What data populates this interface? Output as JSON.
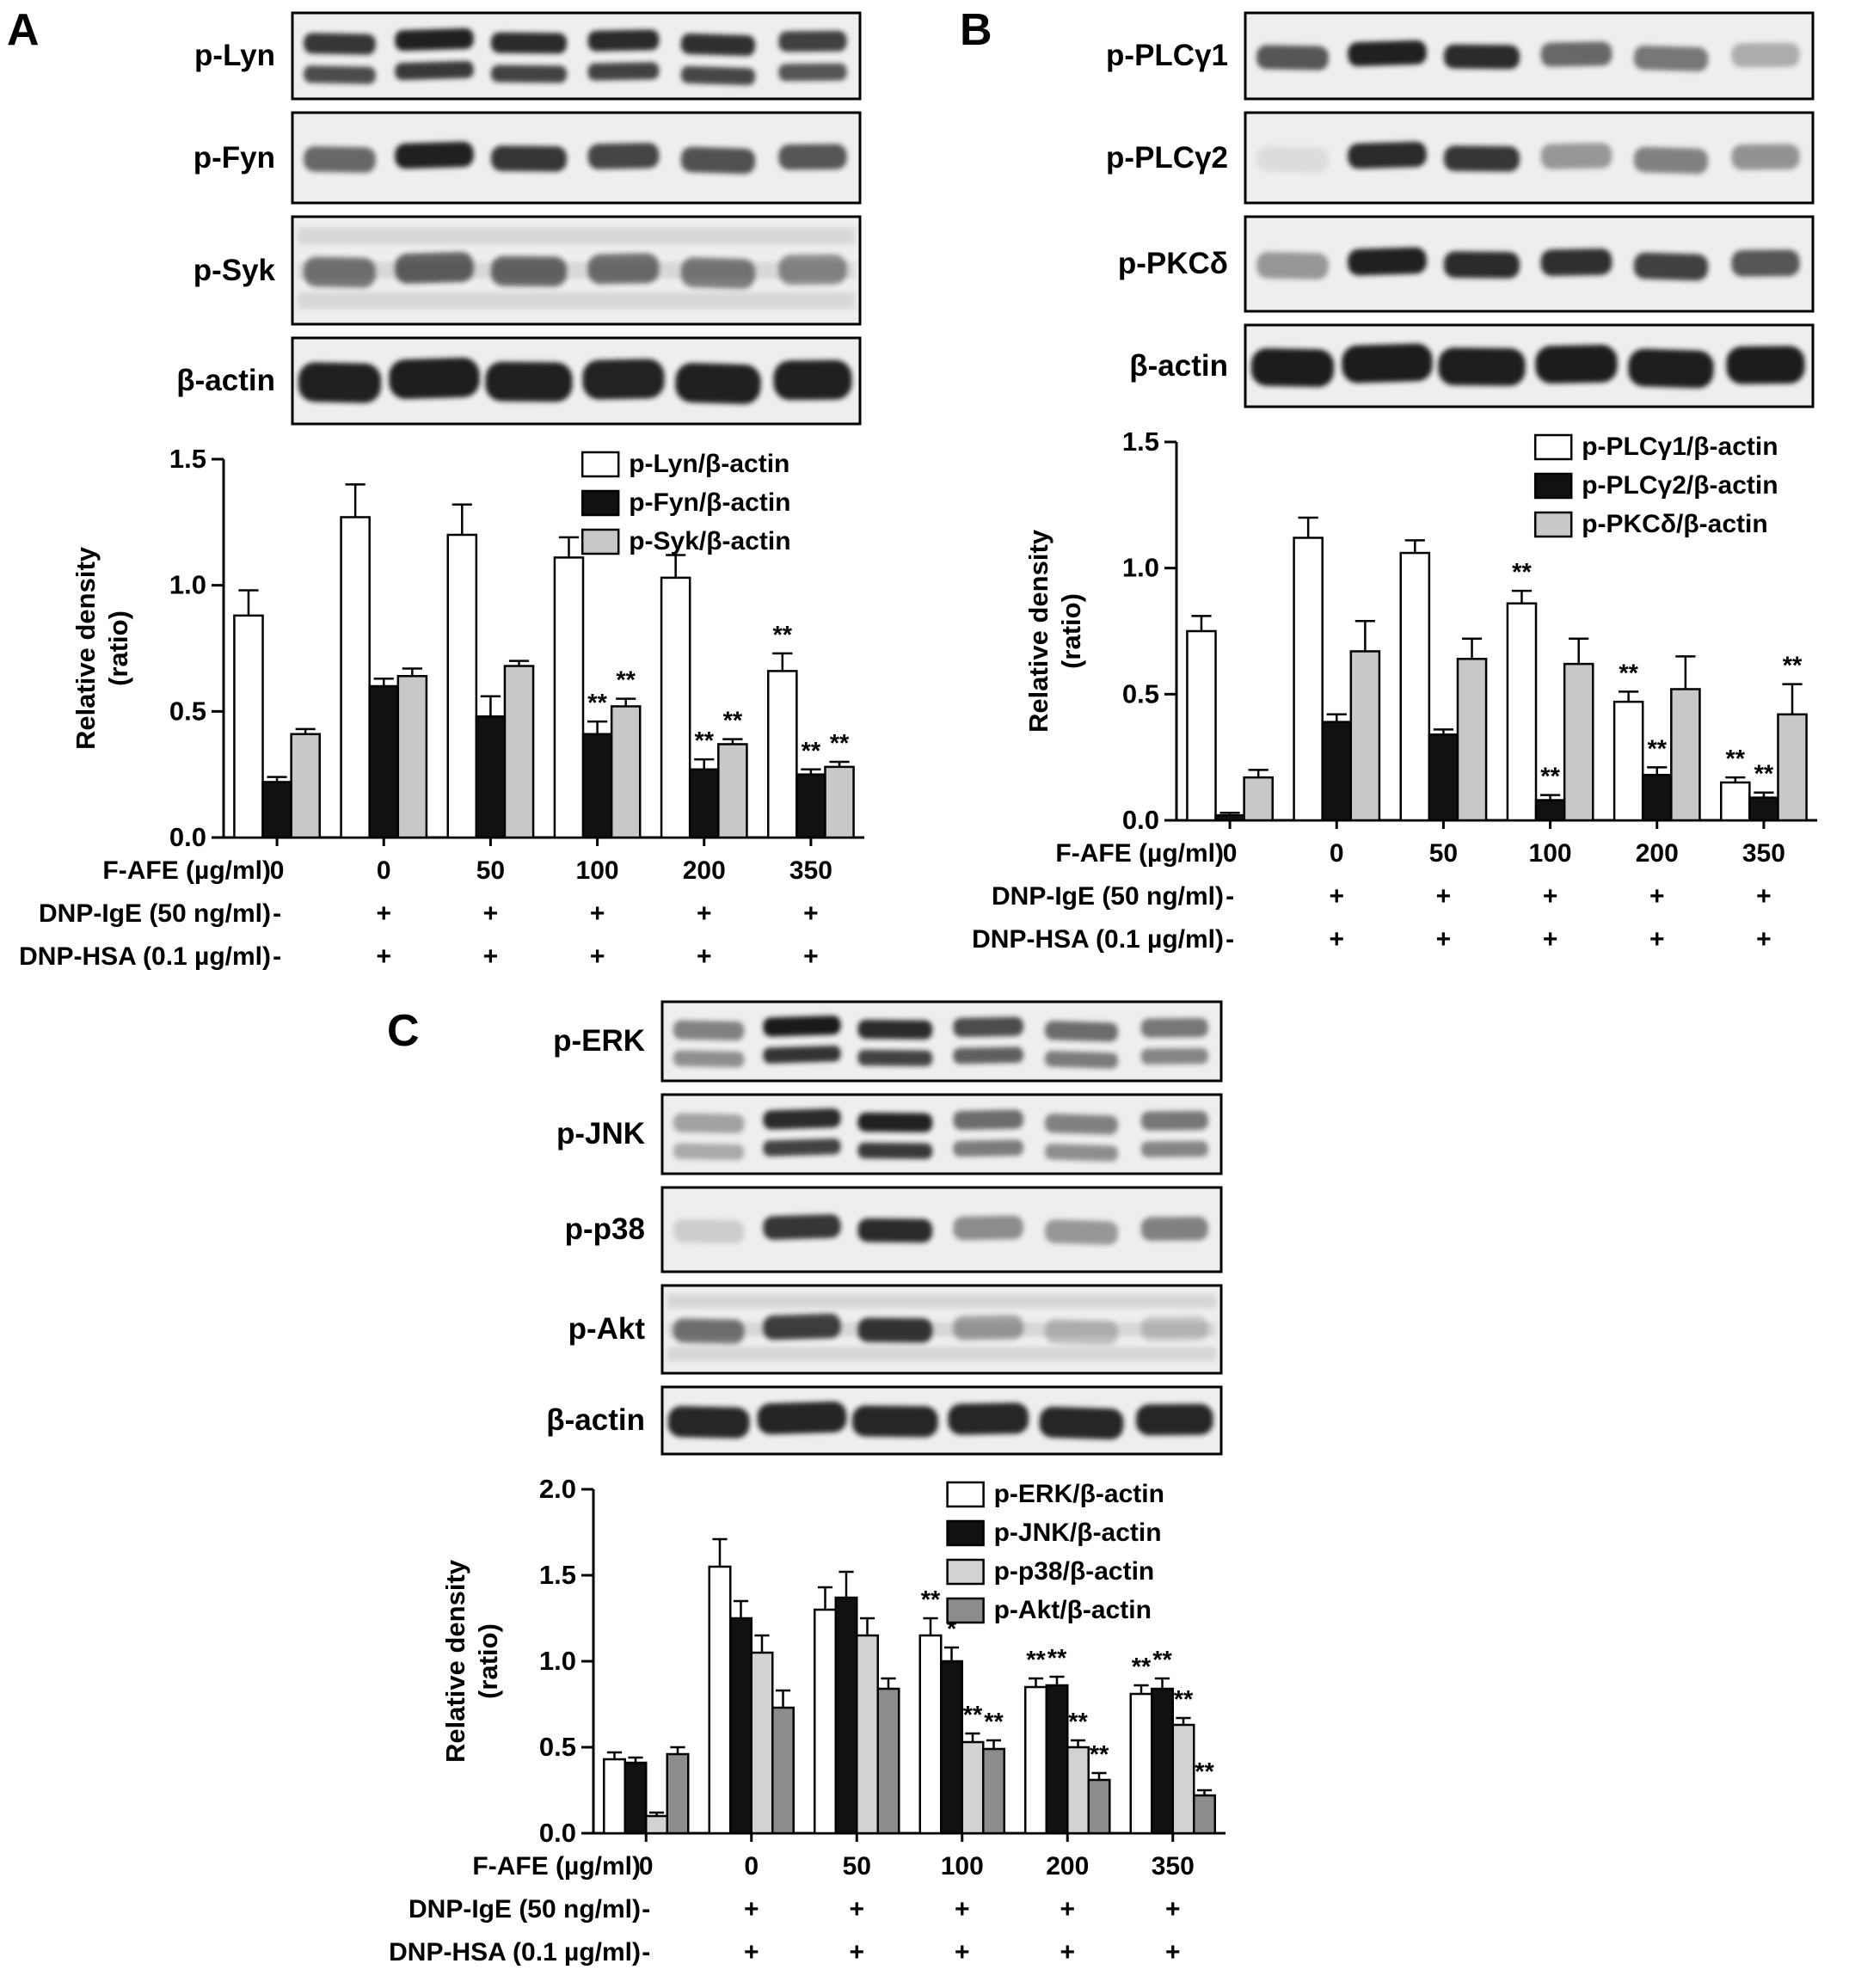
{
  "figure": {
    "panels": [
      {
        "label": "A",
        "blots": [
          {
            "name": "p-Lyn",
            "type": "double",
            "height": 100,
            "intensities": [
              0.85,
              0.95,
              0.9,
              0.9,
              0.88,
              0.8
            ]
          },
          {
            "name": "p-Fyn",
            "type": "single",
            "height": 105,
            "intensities": [
              0.62,
              0.95,
              0.85,
              0.78,
              0.72,
              0.7
            ]
          },
          {
            "name": "p-Syk",
            "type": "smeary",
            "height": 125,
            "smear": 0.8,
            "intensities": [
              0.55,
              0.65,
              0.62,
              0.58,
              0.52,
              0.45
            ]
          },
          {
            "name": "β-actin",
            "type": "thick",
            "height": 100,
            "intensities": [
              0.95,
              0.96,
              0.95,
              0.94,
              0.95,
              0.95
            ]
          }
        ]
      },
      {
        "label": "B",
        "blots": [
          {
            "name": "p-PLCγ1",
            "type": "single",
            "height": 100,
            "intensities": [
              0.7,
              0.95,
              0.9,
              0.62,
              0.55,
              0.3
            ]
          },
          {
            "name": "p-PLCγ2",
            "type": "single",
            "height": 105,
            "intensities": [
              0.08,
              0.9,
              0.85,
              0.4,
              0.5,
              0.42
            ]
          },
          {
            "name": "p-PKCδ",
            "type": "single",
            "height": 110,
            "intensities": [
              0.4,
              0.95,
              0.9,
              0.88,
              0.8,
              0.7
            ]
          },
          {
            "name": "β-actin",
            "type": "thick",
            "height": 95,
            "intensities": [
              0.97,
              0.97,
              0.96,
              0.97,
              0.96,
              0.97
            ]
          }
        ]
      },
      {
        "label": "C",
        "blots": [
          {
            "name": "p-ERK",
            "type": "double",
            "height": 92,
            "intensities": [
              0.5,
              0.98,
              0.9,
              0.75,
              0.6,
              0.55
            ]
          },
          {
            "name": "p-JNK",
            "type": "double",
            "height": 92,
            "intensities": [
              0.35,
              0.9,
              0.95,
              0.6,
              0.5,
              0.55
            ]
          },
          {
            "name": "p-p38",
            "type": "single",
            "height": 98,
            "intensities": [
              0.15,
              0.85,
              0.9,
              0.45,
              0.4,
              0.5
            ]
          },
          {
            "name": "p-Akt",
            "type": "smeary",
            "height": 102,
            "smear": 0.9,
            "intensities": [
              0.55,
              0.8,
              0.85,
              0.35,
              0.22,
              0.18
            ]
          },
          {
            "name": "β-actin",
            "type": "thick",
            "height": 78,
            "intensities": [
              0.92,
              0.93,
              0.92,
              0.92,
              0.92,
              0.92
            ]
          }
        ]
      }
    ]
  },
  "chart_data": [
    {
      "panel": "A",
      "type": "bar",
      "title": "",
      "ylabel": "Relative density (ratio)",
      "ylabel_lines": [
        "Relative density",
        "(ratio)"
      ],
      "ylim": [
        0,
        1.5
      ],
      "yticks": [
        0,
        0.5,
        1.0,
        1.5
      ],
      "grid": false,
      "legend_position": "top-right",
      "categories": [
        "0",
        "0",
        "50",
        "100",
        "200",
        "350"
      ],
      "series": [
        {
          "name": "p-Lyn/β-actin",
          "color": "#ffffff",
          "values": [
            0.88,
            1.27,
            1.2,
            1.11,
            1.03,
            0.66
          ],
          "errors": [
            0.1,
            0.13,
            0.12,
            0.08,
            0.09,
            0.07
          ],
          "sig": [
            "",
            "",
            "",
            "",
            "",
            "**"
          ]
        },
        {
          "name": "p-Fyn/β-actin",
          "color": "#111111",
          "values": [
            0.22,
            0.6,
            0.48,
            0.41,
            0.27,
            0.25
          ],
          "errors": [
            0.02,
            0.03,
            0.08,
            0.05,
            0.04,
            0.02
          ],
          "sig": [
            "",
            "",
            "",
            "**",
            "**",
            "**"
          ]
        },
        {
          "name": "p-Syk/β-actin",
          "color": "#c8c8c8",
          "values": [
            0.41,
            0.64,
            0.68,
            0.52,
            0.37,
            0.28
          ],
          "errors": [
            0.02,
            0.03,
            0.02,
            0.03,
            0.02,
            0.02
          ],
          "sig": [
            "",
            "",
            "",
            "**",
            "**",
            "**"
          ]
        }
      ],
      "treatments": [
        {
          "label": "F-AFE (µg/ml)",
          "values": [
            "0",
            "0",
            "50",
            "100",
            "200",
            "350"
          ]
        },
        {
          "label": "DNP-IgE (50 ng/ml)",
          "values": [
            "-",
            "+",
            "+",
            "+",
            "+",
            "+"
          ]
        },
        {
          "label": "DNP-HSA (0.1 µg/ml)",
          "values": [
            "-",
            "+",
            "+",
            "+",
            "+",
            "+"
          ]
        }
      ]
    },
    {
      "panel": "B",
      "type": "bar",
      "title": "",
      "ylabel": "Relative density (ratio)",
      "ylabel_lines": [
        "Relative density",
        "(ratio)"
      ],
      "ylim": [
        0,
        1.5
      ],
      "yticks": [
        0,
        0.5,
        1.0,
        1.5
      ],
      "grid": false,
      "legend_position": "top-right",
      "categories": [
        "0",
        "0",
        "50",
        "100",
        "200",
        "350"
      ],
      "series": [
        {
          "name": "p-PLCγ1/β-actin",
          "color": "#ffffff",
          "values": [
            0.75,
            1.12,
            1.06,
            0.86,
            0.47,
            0.15
          ],
          "errors": [
            0.06,
            0.08,
            0.05,
            0.05,
            0.04,
            0.02
          ],
          "sig": [
            "",
            "",
            "",
            "**",
            "**",
            "**"
          ]
        },
        {
          "name": "p-PLCγ2/β-actin",
          "color": "#111111",
          "values": [
            0.02,
            0.39,
            0.34,
            0.08,
            0.18,
            0.09
          ],
          "errors": [
            0.01,
            0.03,
            0.02,
            0.02,
            0.03,
            0.02
          ],
          "sig": [
            "",
            "",
            "",
            "**",
            "**",
            "**"
          ]
        },
        {
          "name": "p-PKCδ/β-actin",
          "color": "#c8c8c8",
          "values": [
            0.17,
            0.67,
            0.64,
            0.62,
            0.52,
            0.42
          ],
          "errors": [
            0.03,
            0.12,
            0.08,
            0.1,
            0.13,
            0.12
          ],
          "sig": [
            "",
            "",
            "",
            "",
            "",
            "**"
          ]
        }
      ],
      "treatments": [
        {
          "label": "F-AFE (µg/ml)",
          "values": [
            "0",
            "0",
            "50",
            "100",
            "200",
            "350"
          ]
        },
        {
          "label": "DNP-IgE (50 ng/ml)",
          "values": [
            "-",
            "+",
            "+",
            "+",
            "+",
            "+"
          ]
        },
        {
          "label": "DNP-HSA (0.1 µg/ml)",
          "values": [
            "-",
            "+",
            "+",
            "+",
            "+",
            "+"
          ]
        }
      ]
    },
    {
      "panel": "C",
      "type": "bar",
      "title": "",
      "ylabel": "Relative density (ratio)",
      "ylabel_lines": [
        "Relative density",
        "(ratio)"
      ],
      "ylim": [
        0,
        2.0
      ],
      "yticks": [
        0,
        0.5,
        1.0,
        1.5,
        2.0
      ],
      "grid": false,
      "legend_position": "top-right",
      "categories": [
        "0",
        "0",
        "50",
        "100",
        "200",
        "350"
      ],
      "series": [
        {
          "name": "p-ERK/β-actin",
          "color": "#ffffff",
          "values": [
            0.43,
            1.55,
            1.3,
            1.15,
            0.85,
            0.81
          ],
          "errors": [
            0.04,
            0.16,
            0.13,
            0.1,
            0.05,
            0.05
          ],
          "sig": [
            "",
            "",
            "",
            "**",
            "**",
            "**"
          ]
        },
        {
          "name": "p-JNK/β-actin",
          "color": "#111111",
          "values": [
            0.41,
            1.25,
            1.37,
            1.0,
            0.86,
            0.84
          ],
          "errors": [
            0.03,
            0.1,
            0.15,
            0.08,
            0.05,
            0.06
          ],
          "sig": [
            "",
            "",
            "",
            "*",
            "**",
            "**"
          ]
        },
        {
          "name": "p-p38/β-actin",
          "color": "#d2d2d2",
          "values": [
            0.1,
            1.05,
            1.15,
            0.53,
            0.5,
            0.63
          ],
          "errors": [
            0.02,
            0.1,
            0.1,
            0.05,
            0.04,
            0.04
          ],
          "sig": [
            "",
            "",
            "",
            "**",
            "**",
            "**"
          ]
        },
        {
          "name": "p-Akt/β-actin",
          "color": "#8c8c8c",
          "values": [
            0.46,
            0.73,
            0.84,
            0.49,
            0.31,
            0.22
          ],
          "errors": [
            0.04,
            0.1,
            0.06,
            0.05,
            0.04,
            0.03
          ],
          "sig": [
            "",
            "",
            "",
            "**",
            "**",
            "**"
          ]
        }
      ],
      "treatments": [
        {
          "label": "F-AFE (µg/ml)",
          "values": [
            "0",
            "0",
            "50",
            "100",
            "200",
            "350"
          ]
        },
        {
          "label": "DNP-IgE (50 ng/ml)",
          "values": [
            "-",
            "+",
            "+",
            "+",
            "+",
            "+"
          ]
        },
        {
          "label": "DNP-HSA (0.1 µg/ml)",
          "values": [
            "-",
            "+",
            "+",
            "+",
            "+",
            "+"
          ]
        }
      ]
    }
  ]
}
